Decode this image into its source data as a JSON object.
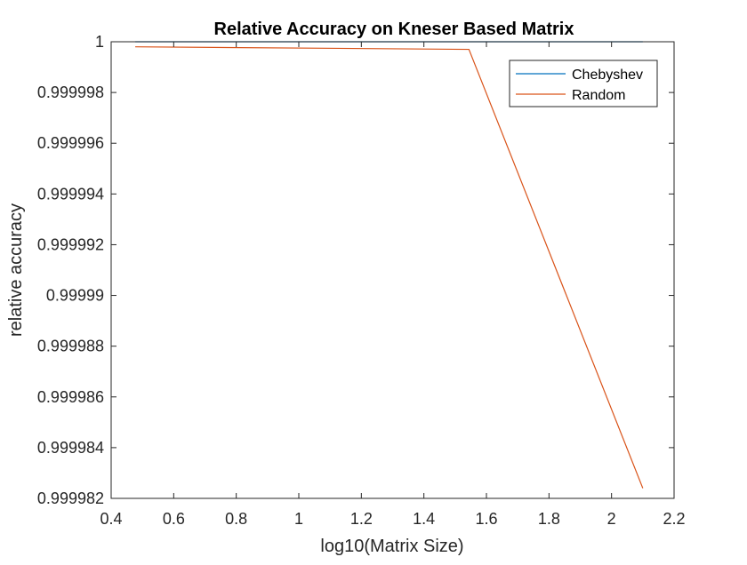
{
  "chart_data": {
    "type": "line",
    "title": "Relative Accuracy on Kneser Based Matrix",
    "xlabel": "log10(Matrix Size)",
    "ylabel": "relative accuracy",
    "xlim": [
      0.4,
      2.2
    ],
    "ylim": [
      0.999982,
      1
    ],
    "xticks": [
      0.4,
      0.6,
      0.8,
      1,
      1.2,
      1.4,
      1.6,
      1.8,
      2,
      2.2
    ],
    "xtick_labels": [
      "0.4",
      "0.6",
      "0.8",
      "1",
      "1.2",
      "1.4",
      "1.6",
      "1.8",
      "2",
      "2.2"
    ],
    "yticks": [
      0.999982,
      0.999984,
      0.999986,
      0.999988,
      0.99999,
      0.999992,
      0.999994,
      0.999996,
      0.999998,
      1
    ],
    "ytick_labels": [
      "0.999982",
      "0.999984",
      "0.999986",
      "0.999988",
      "0.99999",
      "0.999992",
      "0.999994",
      "0.999996",
      "0.999998",
      "1"
    ],
    "grid": false,
    "legend_position": "top-right",
    "series": [
      {
        "name": "Chebyshev",
        "color": "#0072BD",
        "x": [
          0.477,
          1.544,
          2.1
        ],
        "y": [
          1.0,
          1.0,
          1.0
        ]
      },
      {
        "name": "Random",
        "color": "#D95319",
        "x": [
          0.477,
          1.544,
          2.1
        ],
        "y": [
          0.9999998,
          0.9999997,
          0.9999824
        ]
      }
    ]
  }
}
